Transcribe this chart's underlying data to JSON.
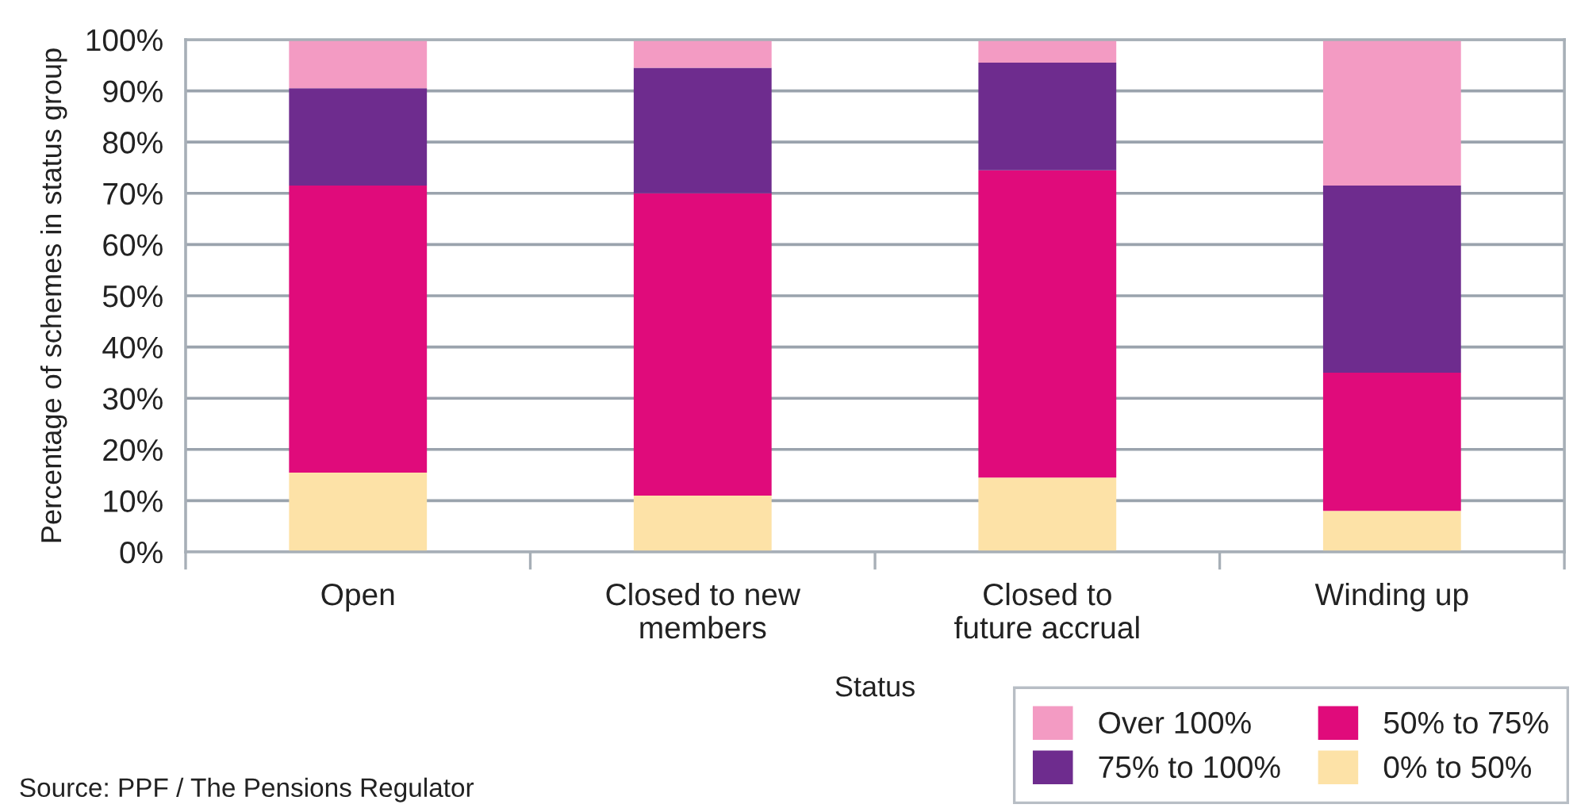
{
  "chart_data": {
    "type": "bar",
    "stacked": true,
    "xlabel": "Status",
    "ylabel": "Percentage of schemes in status group",
    "categories": [
      "Open",
      "Closed to new\nmembers",
      "Closed to\nfuture accrual",
      "Winding up"
    ],
    "series": [
      {
        "name": "0% to 50%",
        "color": "#fde2a7",
        "values": [
          15.5,
          11,
          14.5,
          8
        ]
      },
      {
        "name": "50% to 75%",
        "color": "#e00b7b",
        "values": [
          56,
          59,
          60,
          27
        ]
      },
      {
        "name": "75% to 100%",
        "color": "#6e2c8e",
        "values": [
          19,
          24.5,
          21,
          36.5
        ]
      },
      {
        "name": "Over 100%",
        "color": "#f39bc3",
        "values": [
          9.5,
          5.5,
          4.5,
          28.5
        ]
      }
    ],
    "ylim": [
      0,
      100
    ],
    "yticks": [
      {
        "value": 0,
        "label": "0%"
      },
      {
        "value": 10,
        "label": "10%"
      },
      {
        "value": 20,
        "label": "20%"
      },
      {
        "value": 30,
        "label": "30%"
      },
      {
        "value": 40,
        "label": "40%"
      },
      {
        "value": 50,
        "label": "50%"
      },
      {
        "value": 60,
        "label": "60%"
      },
      {
        "value": 70,
        "label": "70%"
      },
      {
        "value": 80,
        "label": "80%"
      },
      {
        "value": 90,
        "label": "90%"
      },
      {
        "value": 100,
        "label": "100%"
      }
    ],
    "grid": "y",
    "legend": "bottom right",
    "annotations": [
      "Source: PPF / The Pensions Regulator"
    ]
  }
}
